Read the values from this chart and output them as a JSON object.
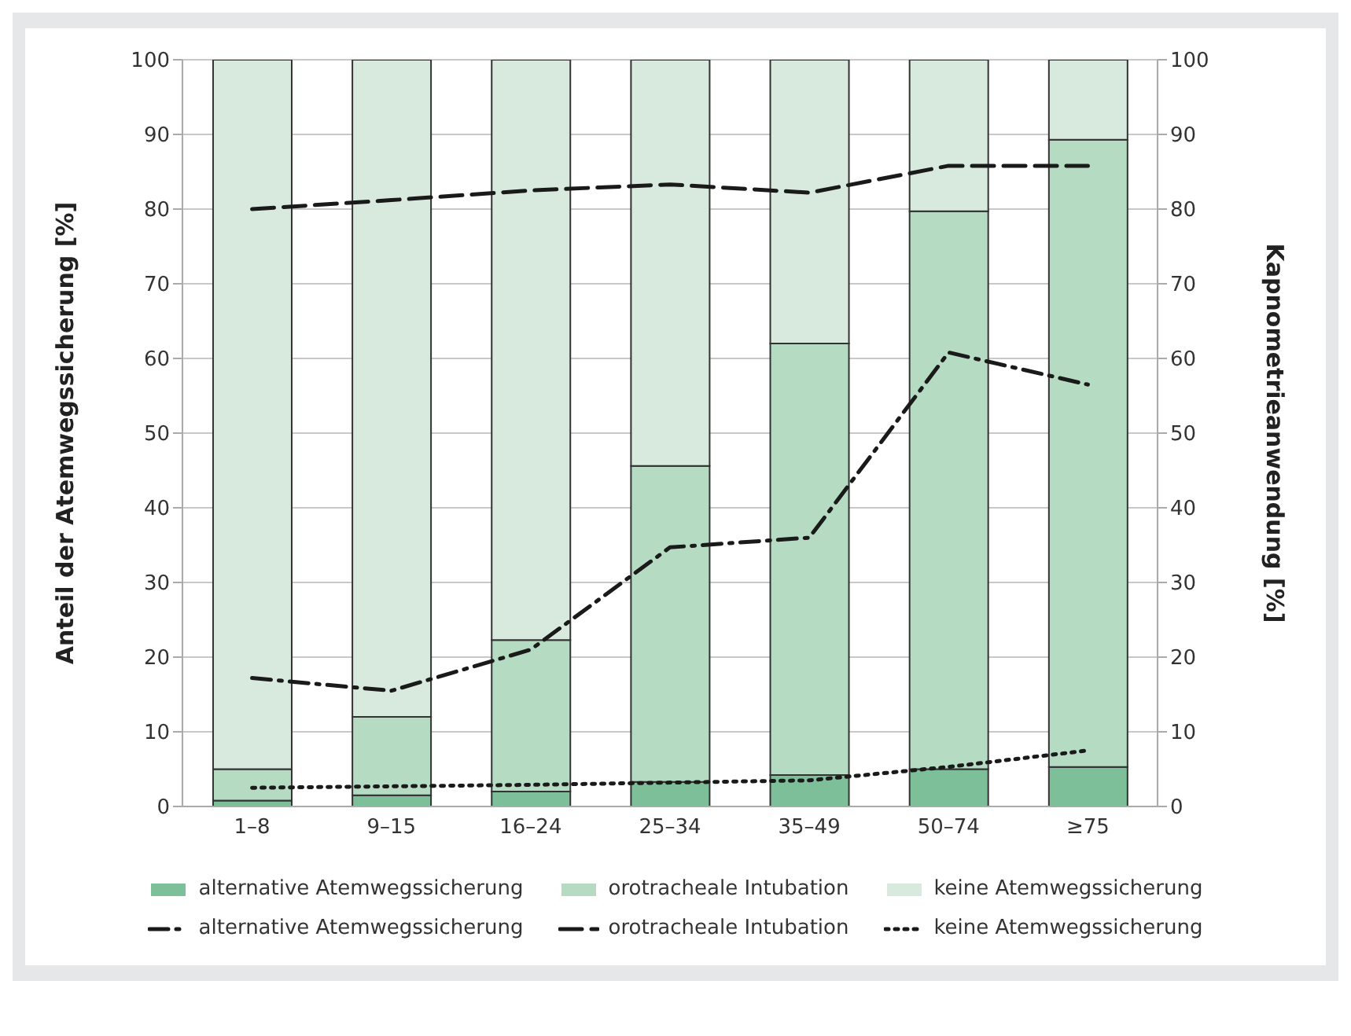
{
  "chart_data": {
    "type": "bar",
    "stacked": true,
    "categories": [
      "1–8",
      "9–15",
      "16–24",
      "25–34",
      "35–49",
      "50–74",
      "≥75"
    ],
    "ylabel": "Anteil der Atemwegssicherung [%]",
    "y2label": "Kapnometrieanwendung [%]",
    "ylim": [
      0,
      100
    ],
    "yticks": [
      0,
      10,
      20,
      30,
      40,
      50,
      60,
      70,
      80,
      90,
      100
    ],
    "y2lim": [
      0,
      100
    ],
    "y2ticks": [
      0,
      10,
      20,
      30,
      40,
      50,
      60,
      70,
      80,
      90,
      100
    ],
    "grid": "y",
    "legend": "bottom",
    "series": [
      {
        "name": "alternative Atemwegssicherung",
        "color": "#7dbf98",
        "values": [
          0.8,
          1.5,
          2,
          3.3,
          4.2,
          5,
          5.3
        ]
      },
      {
        "name": "orotracheale Intubation",
        "color": "#b5dbc3",
        "values": [
          4.2,
          10.5,
          20.3,
          42.3,
          57.8,
          74.7,
          84
        ]
      },
      {
        "name": "keine Atemwegssicherung",
        "color": "#d8eadd",
        "values": [
          95,
          88,
          77.7,
          54.4,
          38,
          20.3,
          10.7
        ]
      },
      {
        "type": "line",
        "axis": "y2",
        "line_style": "dashdot",
        "name": "alternative Atemwegssicherung",
        "color": "#1a1a1a",
        "values": [
          17.2,
          15.5,
          21,
          34.7,
          36,
          60.8,
          56.5
        ]
      },
      {
        "type": "line",
        "axis": "y2",
        "line_style": "dashed",
        "name": "orotracheale Intubation",
        "color": "#1a1a1a",
        "values": [
          80,
          81.2,
          82.5,
          83.3,
          82.2,
          85.8,
          85.8
        ]
      },
      {
        "type": "line",
        "axis": "y2",
        "line_style": "dotted",
        "name": "keine Atemwegssicherung",
        "color": "#1a1a1a",
        "values": [
          2.5,
          2.7,
          2.9,
          3.2,
          3.5,
          5.3,
          7.5
        ]
      }
    ]
  }
}
